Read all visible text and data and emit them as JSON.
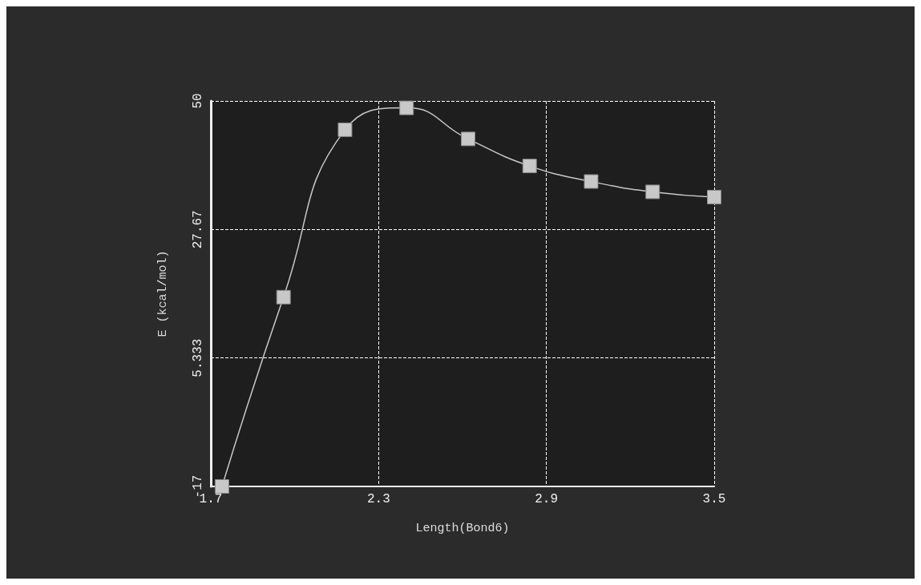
{
  "chart_data": {
    "type": "line",
    "xlabel": "Length(Bond6)",
    "ylabel": "E (kcal/mol)",
    "x": [
      1.74,
      1.96,
      2.18,
      2.4,
      2.62,
      2.84,
      3.06,
      3.28,
      3.5
    ],
    "series": [
      {
        "color": "#c8c8c8",
        "values": [
          -17,
          15.9,
          45.0,
          48.8,
          43.4,
          38.7,
          36.0,
          34.2,
          33.3
        ]
      }
    ],
    "xlim": [
      1.7,
      3.5
    ],
    "xticks": [
      1.7,
      2.3,
      2.9,
      3.5
    ],
    "ylim": [
      -17,
      50
    ],
    "yticks": [
      -17,
      5.333,
      27.67,
      50
    ],
    "grid": true,
    "marker": "square",
    "line_style": "solid"
  }
}
